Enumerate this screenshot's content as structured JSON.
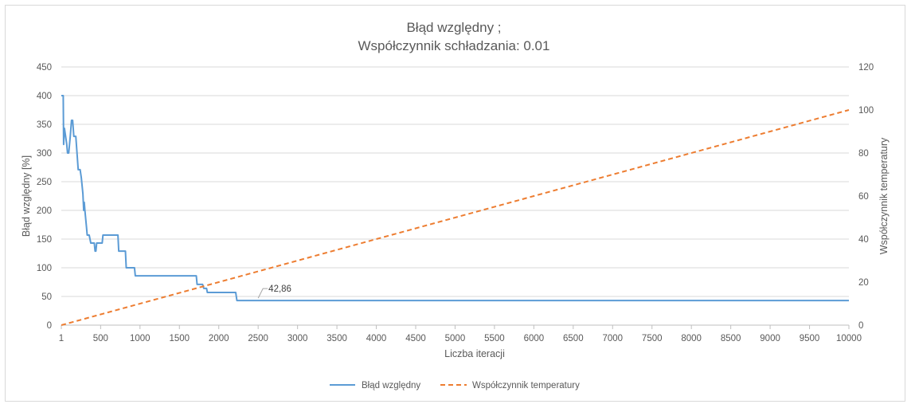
{
  "chart_data": {
    "type": "line",
    "title_lines": [
      "Błąd względny ;",
      "Współczynnik schładzania: 0.01"
    ],
    "xlabel": "Liczba iteracji",
    "ylabel": "Błąd względny [%]",
    "y2label": "Współczynnik temperatury",
    "xlim": [
      1,
      10000
    ],
    "x_ticks": [
      "1",
      "500",
      "1000",
      "1500",
      "2000",
      "2500",
      "3000",
      "3500",
      "4000",
      "4500",
      "5000",
      "5500",
      "6000",
      "6500",
      "7000",
      "7500",
      "8000",
      "8500",
      "9000",
      "9500",
      "10000"
    ],
    "ylim": [
      0,
      450
    ],
    "y_ticks": [
      "0",
      "50",
      "100",
      "150",
      "200",
      "250",
      "300",
      "350",
      "400",
      "450"
    ],
    "y2lim": [
      0,
      120
    ],
    "y2_ticks": [
      "0",
      "20",
      "40",
      "60",
      "80",
      "100",
      "120"
    ],
    "grid": true,
    "legend_position": "bottom",
    "series": [
      {
        "name": "Błąd względny",
        "axis": "left",
        "color": "#5b9bd5",
        "style": "solid",
        "points": [
          [
            1,
            400
          ],
          [
            25,
            400
          ],
          [
            30,
            315
          ],
          [
            40,
            343
          ],
          [
            55,
            330
          ],
          [
            70,
            315
          ],
          [
            80,
            300
          ],
          [
            95,
            300
          ],
          [
            105,
            315
          ],
          [
            115,
            330
          ],
          [
            130,
            357
          ],
          [
            145,
            357
          ],
          [
            160,
            329
          ],
          [
            185,
            329
          ],
          [
            200,
            300
          ],
          [
            215,
            271
          ],
          [
            240,
            271
          ],
          [
            255,
            257
          ],
          [
            275,
            229
          ],
          [
            285,
            200
          ],
          [
            292,
            214
          ],
          [
            300,
            200
          ],
          [
            320,
            171
          ],
          [
            330,
            157
          ],
          [
            355,
            157
          ],
          [
            375,
            143
          ],
          [
            420,
            143
          ],
          [
            430,
            129
          ],
          [
            440,
            129
          ],
          [
            450,
            143
          ],
          [
            520,
            143
          ],
          [
            530,
            157
          ],
          [
            720,
            157
          ],
          [
            730,
            129
          ],
          [
            815,
            129
          ],
          [
            825,
            100
          ],
          [
            930,
            100
          ],
          [
            940,
            86
          ],
          [
            1715,
            86
          ],
          [
            1725,
            71
          ],
          [
            1795,
            71
          ],
          [
            1810,
            64
          ],
          [
            1845,
            64
          ],
          [
            1855,
            57
          ],
          [
            2215,
            57
          ],
          [
            2230,
            42.86
          ],
          [
            10000,
            42.86
          ]
        ]
      },
      {
        "name": "Współczynnik temperatury",
        "axis": "right",
        "color": "#ed7d31",
        "style": "dashed",
        "points": [
          [
            1,
            0
          ],
          [
            10000,
            100
          ]
        ]
      }
    ],
    "annotations": [
      {
        "text": "42,86",
        "x": 2500,
        "y": 42.86
      }
    ]
  }
}
